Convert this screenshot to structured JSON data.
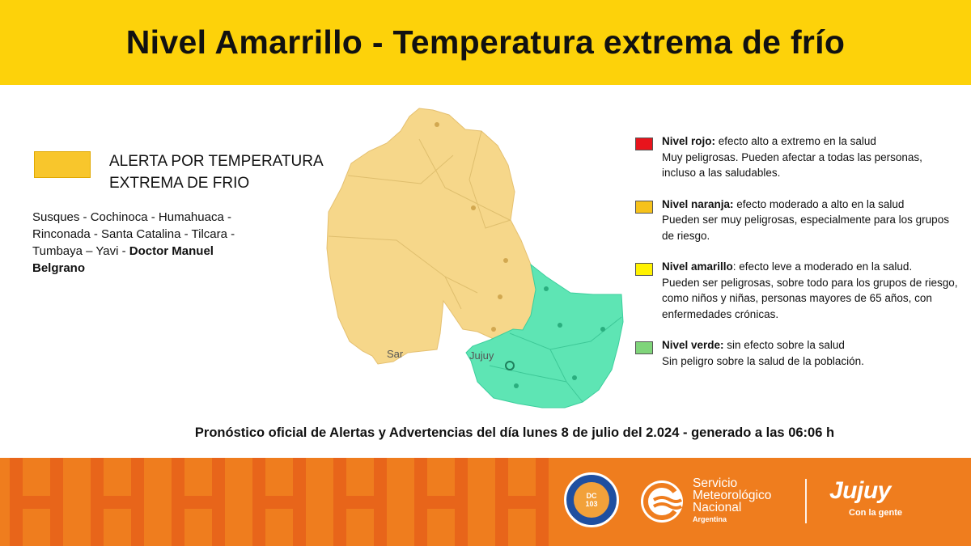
{
  "title": "Nivel Amarrillo - Temperatura extrema de frío",
  "alert": {
    "line1": "ALERTA POR TEMPERATURA",
    "line2": "EXTREMA DE FRIO",
    "color": "#f8c62c"
  },
  "affected_areas": {
    "text": "Susques - Cochinoca - Humahuaca - Rinconada - Santa Catalina - Tilcara - Tumbaya – Yavi - ",
    "bold_tail": "Doctor Manuel Belgrano"
  },
  "map": {
    "labels": {
      "jujuy": "Jujuy",
      "sar": "Sar"
    },
    "colors": {
      "alert_zone": "#f6d78a",
      "safe_zone": "#5ee5b4"
    }
  },
  "levels": [
    {
      "name": "Nivel rojo:",
      "line1": " efecto alto a extremo en la salud",
      "detail": "Muy peligrosas. Pueden afectar a todas las personas, incluso a las saludables.",
      "color": "#e8141c"
    },
    {
      "name": "Nivel naranja:",
      "line1": " efecto moderado a alto en la salud",
      "detail": "Pueden ser muy peligrosas, especialmente para los grupos de riesgo.",
      "color": "#f6c21b"
    },
    {
      "name": "Nivel amarillo",
      "line1": ": efecto leve a moderado en la salud.",
      "detail": "Pueden ser peligrosas, sobre todo para los grupos de riesgo, como niños y niñas, personas mayores de 65 años, con enfermedades crónicas.",
      "color": "#fff200"
    },
    {
      "name": "Nivel verde:",
      "line1": " sin efecto sobre la salud",
      "detail": "Sin peligro sobre la salud de la población.",
      "color": "#7fd47a"
    }
  ],
  "forecast_note": "Pronóstico oficial de Alertas y Advertencias del día lunes 8 de julio del 2.024 - generado a las 06:06 h",
  "footer": {
    "dc_logo": {
      "line1": "DC",
      "line2": "103"
    },
    "smn": {
      "line1": "Servicio",
      "line2": "Meteorológico",
      "line3": "Nacional",
      "line4": "Argentina"
    },
    "jujuy": {
      "name": "Jujuy",
      "tagline": "Con la gente"
    }
  }
}
